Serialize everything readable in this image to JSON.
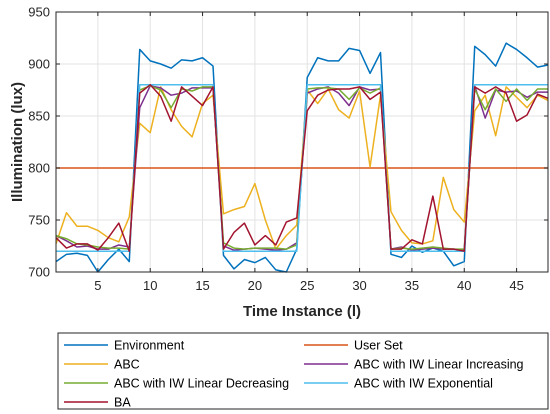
{
  "chart_data": {
    "type": "line",
    "xlabel": "Time Instance (l)",
    "ylabel": "Illumination (lux)",
    "xlim": [
      1,
      48
    ],
    "ylim": [
      700,
      950
    ],
    "xticks": [
      5,
      10,
      15,
      20,
      25,
      30,
      35,
      40,
      45
    ],
    "yticks": [
      700,
      750,
      800,
      850,
      900,
      950
    ],
    "grid": true,
    "legend_position": "below",
    "x": [
      1,
      2,
      3,
      4,
      5,
      6,
      7,
      8,
      9,
      10,
      11,
      12,
      13,
      14,
      15,
      16,
      17,
      18,
      19,
      20,
      21,
      22,
      23,
      24,
      25,
      26,
      27,
      28,
      29,
      30,
      31,
      32,
      33,
      34,
      35,
      36,
      37,
      38,
      39,
      40,
      41,
      42,
      43,
      44,
      45,
      46,
      47,
      48
    ],
    "series": [
      {
        "name": "Environment",
        "color": "#0072BD",
        "values": [
          710,
          717,
          718,
          716,
          700,
          712,
          722,
          710,
          914,
          903,
          900,
          896,
          904,
          903,
          906,
          898,
          716,
          703,
          712,
          709,
          714,
          702,
          700,
          722,
          887,
          906,
          903,
          903,
          915,
          913,
          891,
          911,
          717,
          714,
          725,
          719,
          723,
          720,
          706,
          710,
          917,
          909,
          898,
          920,
          914,
          906,
          897,
          899
        ]
      },
      {
        "name": "User Set",
        "color": "#D95319",
        "values": [
          800,
          800,
          800,
          800,
          800,
          800,
          800,
          800,
          800,
          800,
          800,
          800,
          800,
          800,
          800,
          800,
          800,
          800,
          800,
          800,
          800,
          800,
          800,
          800,
          800,
          800,
          800,
          800,
          800,
          800,
          800,
          800,
          800,
          800,
          800,
          800,
          800,
          800,
          800,
          800,
          800,
          800,
          800,
          800,
          800,
          800,
          800,
          800
        ]
      },
      {
        "name": "ABC",
        "color": "#EDB120",
        "values": [
          727,
          757,
          744,
          744,
          740,
          733,
          729,
          753,
          843,
          834,
          878,
          856,
          840,
          830,
          862,
          870,
          756,
          760,
          763,
          785,
          750,
          722,
          735,
          745,
          875,
          862,
          876,
          856,
          848,
          874,
          801,
          870,
          758,
          740,
          728,
          727,
          730,
          791,
          760,
          748,
          855,
          870,
          831,
          878,
          868,
          858,
          870,
          865
        ]
      },
      {
        "name": "ABC with IW Linear Increasing",
        "color": "#7E2F8E",
        "values": [
          735,
          730,
          724,
          725,
          722,
          722,
          726,
          724,
          858,
          879,
          877,
          870,
          872,
          877,
          877,
          877,
          725,
          721,
          722,
          723,
          722,
          721,
          722,
          728,
          872,
          876,
          878,
          872,
          860,
          878,
          875,
          876,
          722,
          724,
          721,
          722,
          723,
          722,
          722,
          721,
          879,
          848,
          875,
          873,
          874,
          868,
          873,
          873
        ]
      },
      {
        "name": "ABC with IW Linear Decreasing",
        "color": "#77AC30",
        "values": [
          735,
          732,
          727,
          726,
          724,
          723,
          723,
          722,
          875,
          879,
          875,
          858,
          876,
          874,
          878,
          878,
          728,
          723,
          722,
          723,
          723,
          723,
          722,
          726,
          876,
          877,
          877,
          876,
          866,
          877,
          872,
          877,
          722,
          723,
          722,
          723,
          724,
          723,
          722,
          722,
          876,
          856,
          876,
          864,
          876,
          865,
          876,
          876
        ]
      },
      {
        "name": "ABC with IW Exponential",
        "color": "#4DBEEE",
        "values": [
          720,
          720,
          720,
          720,
          720,
          720,
          720,
          720,
          880,
          880,
          880,
          880,
          880,
          880,
          880,
          880,
          720,
          720,
          720,
          720,
          720,
          720,
          720,
          720,
          880,
          880,
          880,
          880,
          880,
          880,
          880,
          880,
          720,
          720,
          720,
          720,
          720,
          720,
          720,
          720,
          880,
          880,
          880,
          880,
          880,
          880,
          880,
          880
        ]
      },
      {
        "name": "BA",
        "color": "#A2142F",
        "values": [
          733,
          723,
          727,
          727,
          721,
          733,
          747,
          720,
          872,
          880,
          869,
          845,
          878,
          869,
          860,
          878,
          722,
          738,
          747,
          726,
          735,
          726,
          748,
          752,
          855,
          870,
          875,
          876,
          876,
          878,
          866,
          873,
          722,
          722,
          731,
          727,
          773,
          722,
          722,
          720,
          878,
          872,
          878,
          872,
          845,
          851,
          871,
          867
        ]
      }
    ]
  }
}
